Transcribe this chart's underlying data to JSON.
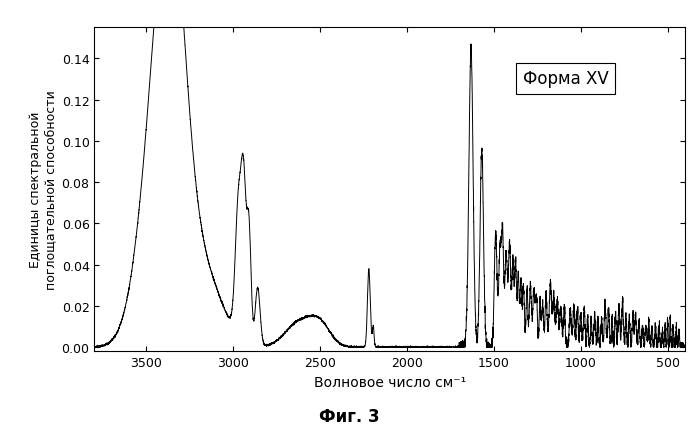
{
  "title_annotation": "Форма XV",
  "xlabel": "Волновое число см⁻¹",
  "ylabel": "Единицы спектральной\nпоглощательной способности",
  "figure_caption": "Фиг. 3",
  "xlim": [
    3800,
    400
  ],
  "ylim": [
    -0.002,
    0.155
  ],
  "yticks": [
    0.0,
    0.02,
    0.04,
    0.06,
    0.08,
    0.1,
    0.12,
    0.14
  ],
  "xticks": [
    3500,
    3000,
    2500,
    2000,
    1500,
    1000,
    500
  ],
  "line_color": "#000000",
  "background_color": "#ffffff",
  "linewidth": 0.7
}
